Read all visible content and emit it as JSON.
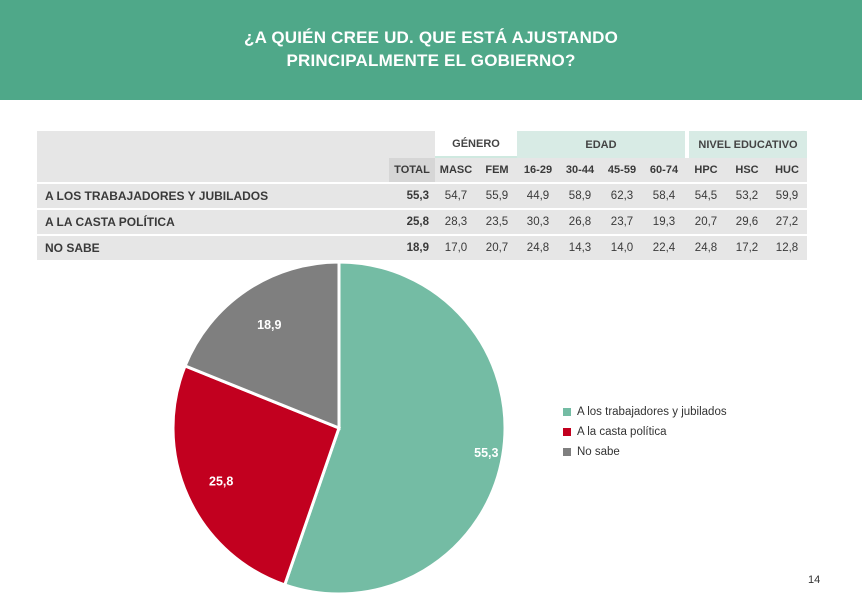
{
  "header": {
    "title_line1": "¿A QUIÉN CREE UD. QUE ESTÁ AJUSTANDO",
    "title_line2": "PRINCIPALMENTE EL GOBIERNO?"
  },
  "table": {
    "groups": {
      "genero": "GÉNERO",
      "edad": "EDAD",
      "nivel": "NIVEL EDUCATIVO"
    },
    "columns": [
      "TOTAL",
      "MASC",
      "FEM",
      "16-29",
      "30-44",
      "45-59",
      "60-74",
      "HPC",
      "HSC",
      "HUC"
    ],
    "rows": [
      {
        "label": "A LOS TRABAJADORES Y JUBILADOS",
        "values": [
          "55,3",
          "54,7",
          "55,9",
          "44,9",
          "58,9",
          "62,3",
          "58,4",
          "54,5",
          "53,2",
          "59,9"
        ]
      },
      {
        "label": "A LA CASTA POLÍTICA",
        "values": [
          "25,8",
          "28,3",
          "23,5",
          "30,3",
          "26,8",
          "23,7",
          "19,3",
          "20,7",
          "29,6",
          "27,2"
        ]
      },
      {
        "label": "NO SABE",
        "values": [
          "18,9",
          "17,0",
          "20,7",
          "24,8",
          "14,3",
          "14,0",
          "22,4",
          "24,8",
          "17,2",
          "12,8"
        ]
      }
    ]
  },
  "chart_data": {
    "type": "pie",
    "slices": [
      {
        "name": "A los trabajadores y jubilados",
        "value": 55.3,
        "label": "55,3",
        "color": "#74bca4"
      },
      {
        "name": "A la casta política",
        "value": 25.8,
        "label": "25,8",
        "color": "#c2001f"
      },
      {
        "name": "No sabe",
        "value": 18.9,
        "label": "18,9",
        "color": "#7f7f7f"
      }
    ],
    "legend_position": "right"
  },
  "page_number": "14"
}
